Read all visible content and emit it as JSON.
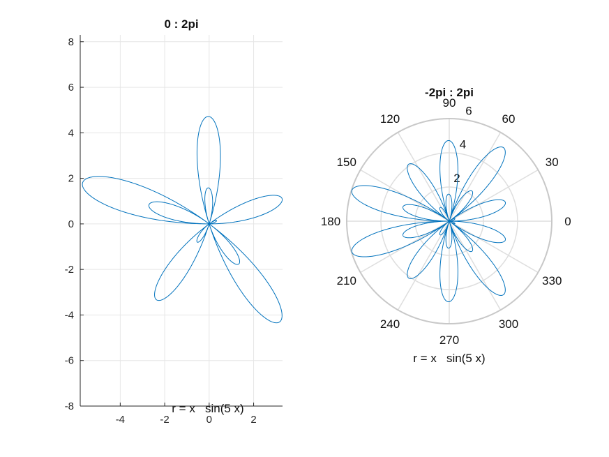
{
  "chart_data": [
    {
      "type": "line",
      "title": "0 : 2pi",
      "xlabel": "r = x   sin(5 x)",
      "ylabel": "",
      "xlim": [
        -5.8,
        3.3
      ],
      "ylim": [
        -8,
        8.3
      ],
      "x_ticks": [
        -4,
        -2,
        0,
        2
      ],
      "y_ticks": [
        -8,
        -6,
        -4,
        -2,
        0,
        2,
        4,
        6,
        8
      ],
      "x_tick_labels": [
        "-4",
        "-2",
        "0",
        "2"
      ],
      "y_tick_labels": [
        "-8",
        "-6",
        "-4",
        "-2",
        "0",
        "2",
        "4",
        "6",
        "8"
      ],
      "grid": true,
      "curve": {
        "formula": "r = x*sin(5x), plotted as x = r*cos(x), y = r*sin(x)",
        "theta_range": [
          0,
          6.2832
        ],
        "color": "#0072bd"
      }
    },
    {
      "type": "polar",
      "title": "-2pi : 2pi",
      "xlabel": "r = x   sin(5 x)",
      "rlim": [
        0,
        6
      ],
      "r_ticks": [
        2,
        4,
        6
      ],
      "r_tick_labels": [
        "2",
        "4",
        "6"
      ],
      "theta_ticks": [
        0,
        30,
        60,
        90,
        120,
        150,
        180,
        210,
        240,
        270,
        300,
        330
      ],
      "theta_tick_labels": [
        "0",
        "30",
        "60",
        "90",
        "120",
        "150",
        "180",
        "210",
        "240",
        "270",
        "300",
        "330"
      ],
      "grid": true,
      "curve": {
        "formula": "r = x*sin(5x)",
        "theta_range": [
          -6.2832,
          6.2832
        ],
        "color": "#0072bd"
      }
    }
  ]
}
